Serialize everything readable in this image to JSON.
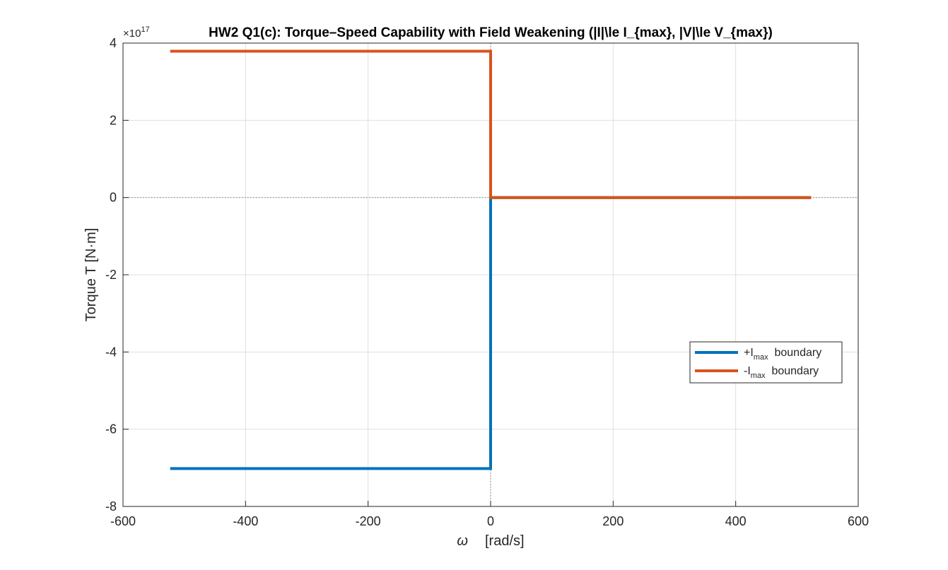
{
  "chart_data": {
    "type": "line",
    "title": "HW2 Q1(c): Torque–Speed Capability with Field Weakening (|I|\\le I_{max}, |V|\\le V_{max})",
    "xlabel": {
      "symbol": "ω",
      "unit": "[rad/s]"
    },
    "ylabel": "Torque  T  [N·m]",
    "y_exponent": {
      "base": "×10",
      "power": "17",
      "value": 17
    },
    "xlim": [
      -600,
      600
    ],
    "ylim": [
      -8,
      4
    ],
    "x_ticks": [
      -600,
      -400,
      -200,
      0,
      200,
      400,
      600
    ],
    "y_ticks": [
      -8,
      -6,
      -4,
      -2,
      0,
      2,
      4
    ],
    "grid": true,
    "legend_position": "right",
    "reference_lines": {
      "x_zero": true,
      "y_zero": true,
      "style": "dotted"
    },
    "series": [
      {
        "name_main": "+I",
        "name_sub": "max",
        "name_tail": "  boundary",
        "color": "#0072BD",
        "points": [
          [
            -523,
            -7.02
          ],
          [
            0,
            -7.02
          ],
          [
            0,
            0
          ],
          [
            523,
            0
          ]
        ]
      },
      {
        "name_main": "-I",
        "name_sub": "max",
        "name_tail": "  boundary",
        "color": "#D95319",
        "points": [
          [
            -523,
            3.79
          ],
          [
            0,
            3.79
          ],
          [
            0,
            0
          ],
          [
            523,
            0
          ]
        ]
      }
    ]
  },
  "colors": {
    "axis": "#262626",
    "grid": "#dfdfdf",
    "reference": "#7f7f7f"
  }
}
